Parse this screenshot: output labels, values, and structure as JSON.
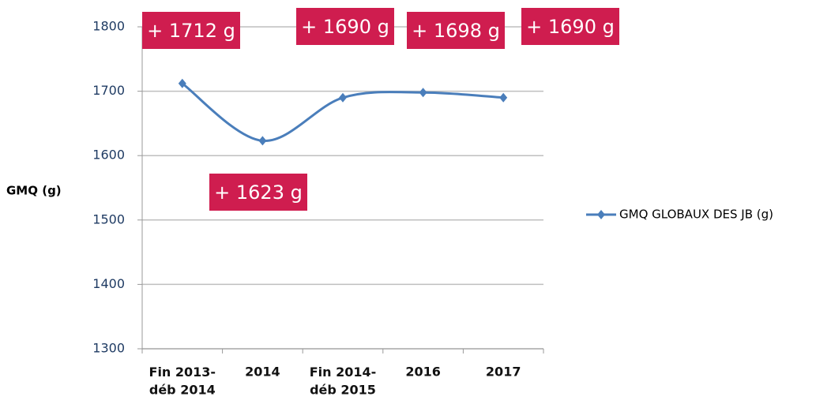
{
  "chart_data": {
    "type": "line",
    "ylabel": "GMQ (g)",
    "categories": [
      "Fin 2013-\ndéb 2014",
      "2014",
      "Fin 2014-\ndéb 2015",
      "2016",
      "2017"
    ],
    "series": [
      {
        "name": "GMQ GLOBAUX DES JB (g)",
        "color": "#4a7ebb",
        "values": [
          1712,
          1623,
          1690,
          1698,
          1690
        ],
        "value_labels": [
          "+ 1712 g",
          "+ 1623 g",
          "+ 1690 g",
          "+ 1698 g",
          "+ 1690 g"
        ]
      }
    ],
    "label_color": "#cf1d4f",
    "ylim": [
      1300,
      1800
    ],
    "yticks": [
      1300,
      1400,
      1500,
      1600,
      1700,
      1800
    ],
    "grid": true,
    "legend": "right"
  }
}
